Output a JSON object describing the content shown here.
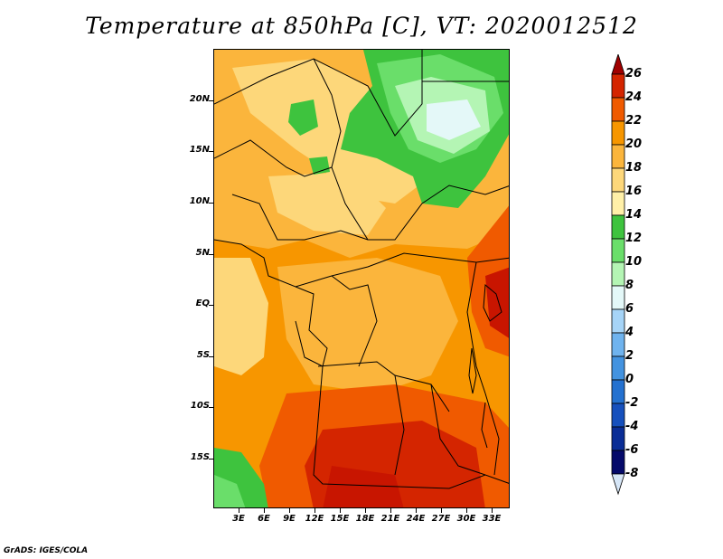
{
  "title": "Temperature at 850hPa [C], VT: 2020012512",
  "credit": "GrADS: IGES/COLA",
  "lat_labels": [
    "20N",
    "15N",
    "10N",
    "5N",
    "EQ",
    "5S",
    "10S",
    "15S"
  ],
  "lon_labels": [
    "3E",
    "6E",
    "9E",
    "12E",
    "15E",
    "18E",
    "21E",
    "24E",
    "27E",
    "30E",
    "33E"
  ],
  "colorbar": {
    "levels": [
      "26",
      "24",
      "22",
      "20",
      "18",
      "16",
      "14",
      "12",
      "10",
      "8",
      "6",
      "4",
      "2",
      "0",
      "-2",
      "-4",
      "-6",
      "-8"
    ],
    "colors": [
      "#a00000",
      "#d42500",
      "#f05a00",
      "#f79600",
      "#fbb53c",
      "#fdd77a",
      "#fff0a8",
      "#3ec33e",
      "#6ade6a",
      "#b4f5b4",
      "#e4f8f8",
      "#a6d4f7",
      "#6fb3ee",
      "#4393e0",
      "#2471d0",
      "#1650bd",
      "#0a2d96",
      "#050a6a",
      "#d6e6f7"
    ]
  },
  "palette": {
    "deep_red": "#c81500",
    "red_orange": "#f05a00",
    "orange": "#f79600",
    "light_orange": "#fbb53c",
    "yellow": "#fdd77a",
    "pale_yellow": "#fff0a8",
    "green": "#3ec33e",
    "light_green": "#6ade6a",
    "pale_green": "#b4f5b4",
    "cyan": "#e4f8f8"
  }
}
